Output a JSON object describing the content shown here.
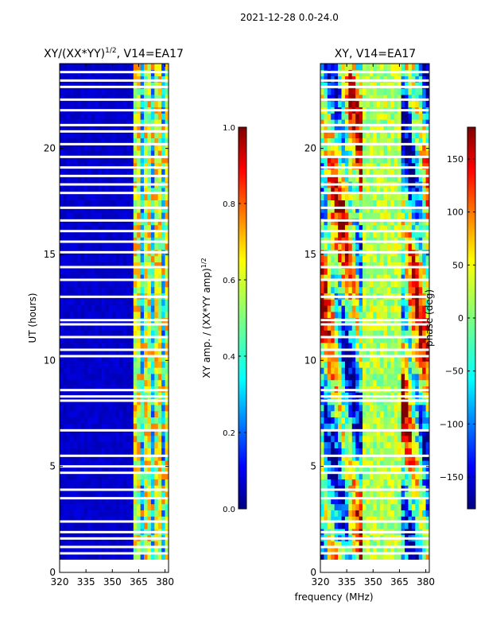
{
  "suptitle": "2021-12-28 0.0-24.0",
  "xlabel": "frequency (MHz)",
  "colors": {
    "background": "#ffffff",
    "axis": "#000000",
    "cmap": [
      "#00007f",
      "#0000ff",
      "#007fff",
      "#00ffff",
      "#7fff7f",
      "#ffff00",
      "#ff7f00",
      "#ff0000",
      "#7f0000"
    ]
  },
  "chart_data": [
    {
      "type": "heatmap",
      "title_main": "XY/(XX*YY)",
      "title_sup": "1/2",
      "title_rest": ", V14=EA17",
      "xlabel": "",
      "ylabel": "UT (hours)",
      "xlim": [
        320,
        382
      ],
      "ylim": [
        0,
        24
      ],
      "xticks": [
        "320",
        "335",
        "350",
        "365",
        "380"
      ],
      "xtick_values": [
        320,
        335,
        350,
        365,
        380
      ],
      "yticks": [
        "0",
        "5",
        "10",
        "15",
        "20"
      ],
      "ytick_values": [
        0,
        5,
        10,
        15,
        20
      ],
      "data_time_range": [
        0.6,
        24.0
      ],
      "colorbar": {
        "label_main": "XY amp. / (XX*YY amp)",
        "label_sup": "1/2",
        "range": [
          0.0,
          1.0
        ],
        "ticks": [
          "0.0",
          "0.2",
          "0.4",
          "0.6",
          "0.8",
          "1.0"
        ],
        "tick_values": [
          0.0,
          0.2,
          0.4,
          0.6,
          0.8,
          1.0
        ]
      },
      "description_values": {
        "background_level": 0.05,
        "band_365_380_level": 0.45,
        "band_peaks": 0.75
      }
    },
    {
      "type": "heatmap",
      "title_main": "XY, V14=EA17",
      "xlabel": "",
      "ylabel": "",
      "xlim": [
        320,
        382
      ],
      "ylim": [
        0,
        24
      ],
      "xticks": [
        "320",
        "335",
        "350",
        "365",
        "380"
      ],
      "xtick_values": [
        320,
        335,
        350,
        365,
        380
      ],
      "yticks": [
        "0",
        "5",
        "10",
        "15",
        "20"
      ],
      "ytick_values": [
        0,
        5,
        10,
        15,
        20
      ],
      "data_time_range": [
        0.6,
        24.0
      ],
      "colorbar": {
        "label_main": "phase (deg)",
        "range": [
          -180,
          180
        ],
        "ticks": [
          "−150",
          "−100",
          "−50",
          "0",
          "50",
          "100",
          "150"
        ],
        "tick_values": [
          -150,
          -100,
          -50,
          0,
          50,
          100,
          150
        ]
      }
    }
  ],
  "flagged_hours": [
    0.9,
    1.2,
    1.6,
    1.9,
    2.4,
    3.5,
    3.9,
    4.7,
    5.0,
    5.5,
    6.7,
    8.1,
    8.3,
    8.6,
    10.2,
    10.5,
    11.1,
    11.7,
    11.9,
    13.0,
    13.8,
    14.4,
    15.1,
    15.6,
    16.1,
    16.6,
    17.2,
    17.9,
    18.3,
    18.7,
    19.1,
    19.6,
    20.2,
    20.8,
    21.1,
    21.8,
    22.3,
    22.9,
    23.2,
    23.6
  ]
}
